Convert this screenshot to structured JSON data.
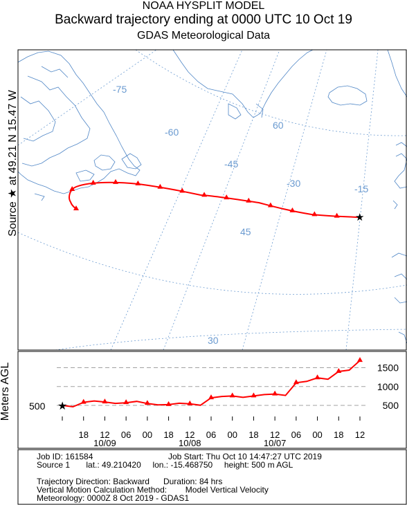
{
  "title": {
    "line1": "NOAA HYSPLIT MODEL",
    "line2": "Backward trajectory ending at 0000 UTC 10 Oct 19",
    "line3": "GDAS Meteorological Data"
  },
  "map_ylabel": "Source ★ at 49.21 N 15.47 W",
  "agl_ylabel": "Meters AGL",
  "colors": {
    "trajectory": "#ff0000",
    "grid": "#6a9ad0",
    "coast": "#4f86c6",
    "guide": "#a0a0a0"
  },
  "map": {
    "meridian_labels": [
      "-75",
      "-60",
      "-45",
      "-30",
      "-15"
    ],
    "parallel_labels": [
      "60",
      "45",
      "30"
    ]
  },
  "chart_data": {
    "type": "line",
    "title": "",
    "xlabel": "",
    "ylabel": "Meters AGL",
    "ylim": [
      300,
      1750
    ],
    "yticks": [
      500,
      1000,
      1500
    ],
    "y_left_label": "500",
    "x_hour_ticks": [
      "18",
      "12",
      "06",
      "00",
      "18",
      "12",
      "06",
      "00",
      "18",
      "12",
      "06",
      "00",
      "18",
      "12"
    ],
    "x_date_labels": [
      "10/09",
      "10/08",
      "10/07"
    ],
    "series": [
      {
        "x_hours_back": [
          84,
          78,
          72,
          66,
          60,
          54,
          48,
          42,
          36,
          30,
          24,
          18,
          12,
          6,
          0
        ],
        "height_m": [
          500,
          580,
          590,
          570,
          550,
          520,
          540,
          700,
          750,
          750,
          800,
          1100,
          1230,
          1400,
          1690
        ],
        "lat": [
          49.21,
          49.1,
          49.0,
          48.9,
          48.8,
          48.7,
          48.9,
          49.3,
          50.0,
          50.8,
          51.4,
          51.9,
          52.2,
          52.5,
          49.21
        ],
        "lon": [
          -15.47,
          -22.0,
          -27.5,
          -32.0,
          -36.5,
          -41.0,
          -46.0,
          -51.0,
          -55.5,
          -60.0,
          -64.0,
          -66.5,
          -67.0,
          -66.8,
          -66.5
        ]
      }
    ]
  },
  "info": {
    "job_id": "Job ID: 161584",
    "job_start": "Job Start: Thu Oct 10 14:47:27 UTC 2019",
    "source": "Source 1       lat.: 49.210420     lon.: -15.468750     height: 500 m AGL",
    "direction": "Trajectory Direction: Backward      Duration: 84 hrs",
    "vertical": "Vertical Motion Calculation Method:        Model Vertical Velocity",
    "meteorology": "Meteorology: 0000Z  8 Oct 2019 - GDAS1"
  }
}
